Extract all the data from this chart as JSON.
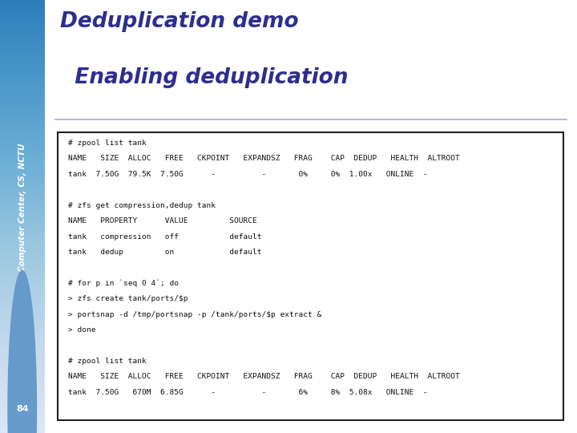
{
  "title_line1": "Deduplication demo",
  "title_line2": "  Enabling deduplication",
  "title_color": "#2e2e8b",
  "sidebar_text": "Computer Center, CS, NCTU",
  "sidebar_color_top": "#b8d4ee",
  "sidebar_color_bottom": "#4a90c4",
  "page_number": "84",
  "page_num_color": "#6699cc",
  "bg_color": "#ffffff",
  "hrule_color": "#aaaacc",
  "code_border_color": "#222222",
  "code_text_color": "#111111",
  "code_lines": [
    "# zpool list tank",
    "NAME   SIZE  ALLOC   FREE   CKPOINT   EXPANDSZ   FRAG    CAP  DEDUP   HEALTH  ALTROOT",
    "tank  7.50G  79.5K  7.50G      -          -       0%     0%  1.00x   ONLINE  -",
    "",
    "# zfs get compression,dedup tank",
    "NAME   PROPERTY      VALUE         SOURCE",
    "tank   compression   off           default",
    "tank   dedup         on            default",
    "",
    "# for p in `seq 0 4`; do",
    "> zfs create tank/ports/$p",
    "> portsnap -d /tmp/portsnap -p /tank/ports/$p extract &",
    "> done",
    "",
    "# zpool list tank",
    "NAME   SIZE  ALLOC   FREE   CKPOINT   EXPANDSZ   FRAG    CAP  DEDUP   HEALTH  ALTROOT",
    "tank  7.50G   670M  6.85G      -          -       6%     8%  5.08x   ONLINE  -"
  ]
}
